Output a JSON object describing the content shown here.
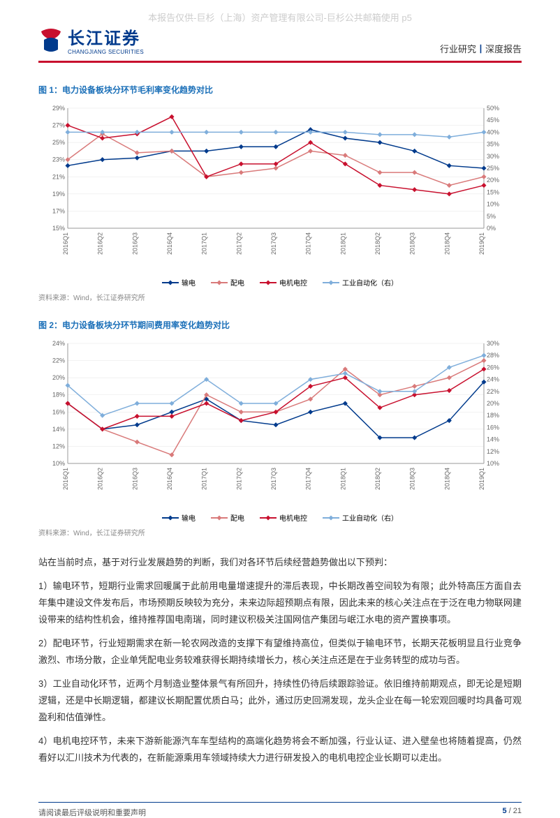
{
  "watermark": "本报告仅供-巨杉（上海）资产管理有限公司-巨杉公共邮箱使用 p5",
  "logo": {
    "cn": "长江证券",
    "en": "CHANGJIANG SECURITIES"
  },
  "header_right": {
    "cat": "行业研究",
    "sep": "丨",
    "type": "深度报告"
  },
  "chart1": {
    "title": "图 1：电力设备板块分环节毛利率变化趋势对比",
    "source": "资料来源：Wind，长江证券研究所",
    "categories": [
      "2016Q1",
      "2016Q2",
      "2016Q3",
      "2016Q4",
      "2017Q1",
      "2017Q2",
      "2017Q3",
      "2017Q4",
      "2018Q1",
      "2018Q2",
      "2018Q3",
      "2018Q4",
      "2019Q1"
    ],
    "left_axis": {
      "min": 15,
      "max": 29,
      "step": 2,
      "fmt": "%"
    },
    "right_axis": {
      "min": 0,
      "max": 50,
      "step": 5,
      "fmt": "%"
    },
    "series": [
      {
        "name": "输电",
        "color": "#003a8c",
        "axis": "left",
        "values": [
          22.3,
          23.0,
          23.2,
          24.0,
          24.0,
          24.5,
          24.5,
          26.5,
          25.5,
          25.0,
          24.0,
          22.3,
          22.0
        ]
      },
      {
        "name": "配电",
        "color": "#d97a7a",
        "axis": "left",
        "values": [
          23.0,
          26.0,
          23.8,
          24.0,
          21.0,
          21.5,
          22.0,
          24.0,
          23.5,
          21.5,
          21.5,
          20.0,
          21.0
        ]
      },
      {
        "name": "电机电控",
        "color": "#c8102e",
        "axis": "left",
        "values": [
          27.0,
          25.5,
          26.0,
          28.0,
          21.0,
          22.5,
          22.5,
          25.0,
          22.5,
          20.0,
          19.5,
          19.0,
          20.0
        ]
      },
      {
        "name": "工业自动化（右）",
        "color": "#7faedb",
        "axis": "right",
        "values": [
          40,
          40,
          40,
          40,
          40,
          40,
          40,
          40,
          40,
          39,
          39,
          38,
          40
        ]
      }
    ],
    "bg": "#ffffff",
    "grid": "#e5e5e5",
    "tick_font": 9
  },
  "chart2": {
    "title": "图 2：电力设备板块分环节期间费用率变化趋势对比",
    "source": "资料来源：Wind，长江证券研究所",
    "categories": [
      "2016Q1",
      "2016Q2",
      "2016Q3",
      "2016Q4",
      "2017Q1",
      "2017Q2",
      "2017Q3",
      "2017Q4",
      "2018Q1",
      "2018Q2",
      "2018Q3",
      "2018Q4",
      "2019Q1"
    ],
    "left_axis": {
      "min": 10,
      "max": 24,
      "step": 2,
      "fmt": "%"
    },
    "right_axis": {
      "min": 10,
      "max": 30,
      "step": 2,
      "fmt": "%"
    },
    "series": [
      {
        "name": "输电",
        "color": "#003a8c",
        "axis": "left",
        "values": [
          17,
          14,
          14.5,
          16,
          17.5,
          15,
          14.5,
          16,
          17,
          13,
          13,
          15,
          19.5
        ]
      },
      {
        "name": "配电",
        "color": "#d97a7a",
        "axis": "left",
        "values": [
          17,
          14,
          12.5,
          11,
          18,
          16,
          16,
          17.5,
          21,
          18,
          19,
          20,
          22
        ]
      },
      {
        "name": "电机电控",
        "color": "#c8102e",
        "axis": "left",
        "values": [
          17,
          14,
          15.5,
          15.5,
          17,
          15,
          16,
          19,
          20,
          16.5,
          18,
          18.5,
          21
        ]
      },
      {
        "name": "工业自动化（右）",
        "color": "#7faedb",
        "axis": "right",
        "values": [
          23,
          18,
          20,
          20,
          24,
          20,
          20,
          24,
          25,
          22,
          22,
          26,
          28
        ]
      }
    ],
    "bg": "#ffffff",
    "grid": "#e5e5e5",
    "tick_font": 9
  },
  "body": {
    "intro": "站在当前时点，基于对行业发展趋势的判断，我们对各环节后续经营趋势做出以下预判：",
    "p1": "1）输电环节，短期行业需求回暖属于此前用电量增速提升的滞后表现，中长期改善空间较为有限；此外特高压方面自去年集中建设文件发布后，市场预期反映较为充分，未来边际超预期点有限，因此未来的核心关注点在于泛在电力物联网建设带来的结构性机会，维持推荐国电南瑞，同时建议积极关注国网信产集团与岷江水电的资产置换事项。",
    "p2": "2）配电环节，行业短期需求在新一轮农网改造的支撑下有望维持高位，但类似于输电环节，长期天花板明显且行业竞争激烈、市场分散，企业单凭配电业务较难获得长期持续增长力，核心关注点还是在于业务转型的成功与否。",
    "p3": "3）工业自动化环节，近两个月制造业整体景气有所回升，持续性仍待后续跟踪验证。依旧维持前期观点，即无论是短期逻辑，还是中长期逻辑，都建议长期配置优质白马；此外，通过历史回溯发现，龙头企业在每一轮宏观回暖时均具备可观盈利和估值弹性。",
    "p4": "4）电机电控环节，未来下游新能源汽车车型结构的高端化趋势将会不断加强，行业认证、进入壁垒也将随着提高，仍然看好以汇川技术为代表的，在新能源乘用车领域持续大力进行研发投入的电机电控企业长期可以走出。"
  },
  "footer": {
    "left": "请阅读最后评级说明和重要声明",
    "cur": "5",
    "sep": " / ",
    "total": "21"
  }
}
